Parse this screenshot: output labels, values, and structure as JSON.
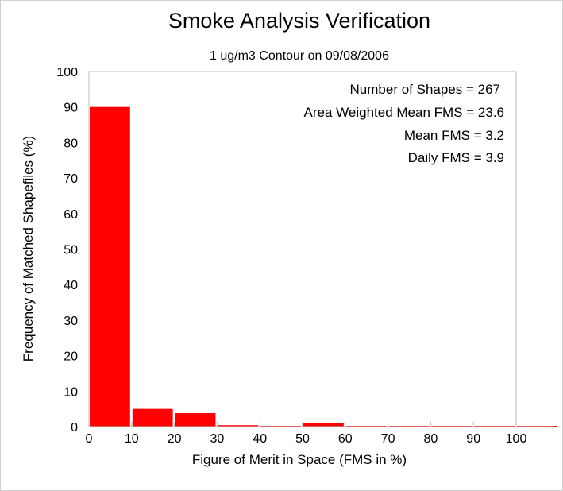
{
  "chart_data": {
    "type": "bar",
    "title": "Smoke Analysis Verification",
    "subtitle": "1 ug/m3 Contour on 09/08/2006",
    "xlabel": "Figure of Merit in Space (FMS in %)",
    "ylabel": "Frequency of Matched Shapefiles (%)",
    "xlim": [
      0,
      110
    ],
    "ylim": [
      0,
      100
    ],
    "x_ticks": [
      "0",
      "10",
      "20",
      "30",
      "40",
      "50",
      "60",
      "70",
      "80",
      "90",
      "100"
    ],
    "y_ticks": [
      "0",
      "10",
      "20",
      "30",
      "40",
      "50",
      "60",
      "70",
      "80",
      "90",
      "100"
    ],
    "bins": [
      {
        "start": 0,
        "end": 10,
        "value": 90
      },
      {
        "start": 10,
        "end": 20,
        "value": 5
      },
      {
        "start": 20,
        "end": 30,
        "value": 3.8
      },
      {
        "start": 30,
        "end": 40,
        "value": 0.4
      },
      {
        "start": 40,
        "end": 50,
        "value": 0
      },
      {
        "start": 50,
        "end": 60,
        "value": 1.1
      },
      {
        "start": 60,
        "end": 70,
        "value": 0
      },
      {
        "start": 70,
        "end": 80,
        "value": 0
      },
      {
        "start": 80,
        "end": 90,
        "value": 0
      },
      {
        "start": 90,
        "end": 100,
        "value": 0
      },
      {
        "start": 100,
        "end": 110,
        "value": 0
      }
    ],
    "bar_color": "#ff0000",
    "grid": false,
    "annotations": [
      "Number of Shapes = 267",
      "Area Weighted Mean FMS = 23.6",
      "Mean FMS = 3.2",
      "Daily FMS = 3.9"
    ]
  }
}
